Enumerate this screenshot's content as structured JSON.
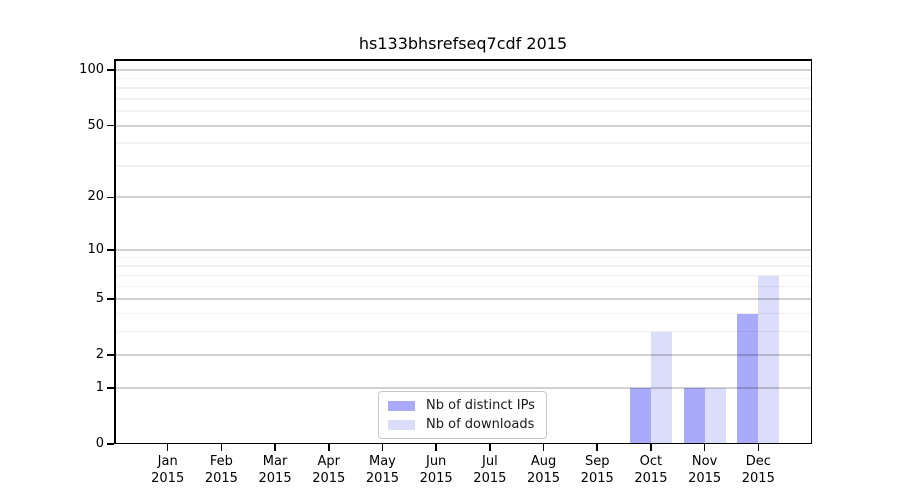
{
  "title": "hs133bhsrefseq7cdf 2015",
  "legend": {
    "items": [
      {
        "label": "Nb of distinct IPs"
      },
      {
        "label": "Nb of downloads"
      }
    ]
  },
  "colors": {
    "distinct_ips_bar": "#aaaafa",
    "downloads_bar": "#dcdcfb",
    "grid_major": "rgba(0,0,0,0.18)",
    "grid_minor": "rgba(0,0,0,0.055)",
    "spine": "#000000",
    "background": "#ffffff"
  },
  "chart_data": {
    "type": "bar",
    "title": "hs133bhsrefseq7cdf 2015",
    "categories": [
      "Jan 2015",
      "Feb 2015",
      "Mar 2015",
      "Apr 2015",
      "May 2015",
      "Jun 2015",
      "Jul 2015",
      "Aug 2015",
      "Sep 2015",
      "Oct 2015",
      "Nov 2015",
      "Dec 2015"
    ],
    "series": [
      {
        "name": "Nb of distinct IPs",
        "color": "#aaaafa",
        "values": [
          0,
          0,
          0,
          0,
          0,
          0,
          0,
          0,
          0,
          1,
          1,
          4
        ]
      },
      {
        "name": "Nb of downloads",
        "color": "#dcdcfb",
        "values": [
          0,
          0,
          0,
          0,
          0,
          0,
          0,
          0,
          0,
          3,
          1,
          7
        ]
      }
    ],
    "xlabel": "",
    "ylabel": "",
    "y_scale": "log10(1+v)",
    "y_ticks": [
      0,
      1,
      2,
      5,
      10,
      20,
      50,
      100
    ],
    "y_minor_grid": [
      3,
      4,
      6,
      7,
      8,
      9,
      30,
      40,
      60,
      70,
      80,
      90
    ],
    "ylim": [
      0,
      115
    ],
    "grid": "horizontal",
    "legend_position": "inside-bottom-center"
  }
}
